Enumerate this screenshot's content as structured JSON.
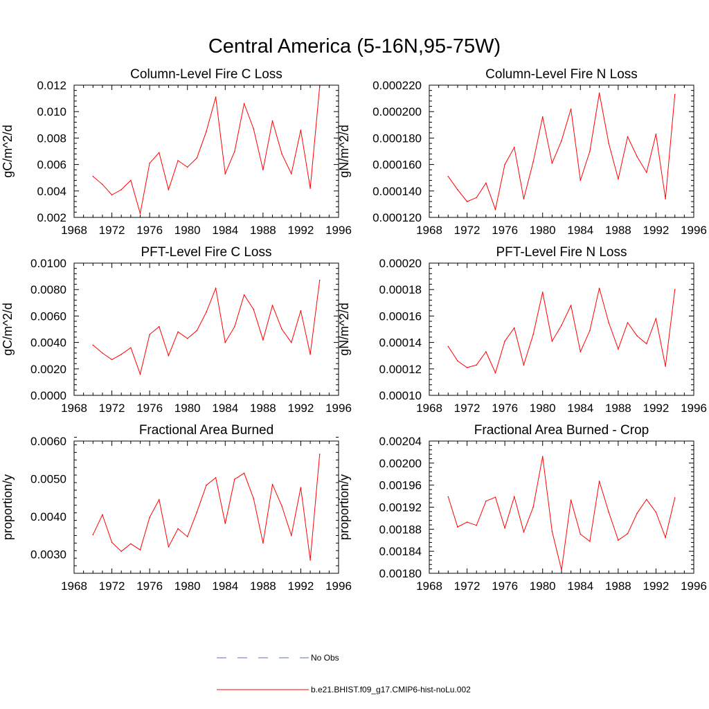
{
  "figure": {
    "title": "Central America (5-16N,95-75W)"
  },
  "legend": {
    "entries": [
      {
        "label": "No Obs",
        "color": "#5b6fb5",
        "dash": "dashed"
      },
      {
        "label": "b.e21.BHIST.f09_g17.CMIP6-hist-noLu.002",
        "color": "#ff0000",
        "dash": "solid"
      }
    ]
  },
  "chart_data": [
    {
      "type": "line",
      "title": "Column-Level Fire C Loss",
      "ylabel": "gC/m^2/d",
      "xlim": [
        1968,
        1996
      ],
      "xticks": [
        1968,
        1972,
        1976,
        1980,
        1984,
        1988,
        1992,
        1996
      ],
      "ylim": [
        0.002,
        0.012
      ],
      "yticks": [
        "0.002",
        "0.004",
        "0.006",
        "0.008",
        "0.010",
        "0.012"
      ],
      "ytick_values": [
        0.002,
        0.004,
        0.006,
        0.008,
        0.01,
        0.012
      ],
      "series": [
        {
          "color": "#ff0000",
          "x": [
            1970,
            1971,
            1972,
            1973,
            1974,
            1975,
            1976,
            1977,
            1978,
            1979,
            1980,
            1981,
            1982,
            1983,
            1984,
            1985,
            1986,
            1987,
            1988,
            1989,
            1990,
            1991,
            1992,
            1993,
            1994
          ],
          "values": [
            0.0051,
            0.0045,
            0.0037,
            0.0041,
            0.0048,
            0.0023,
            0.0061,
            0.0069,
            0.0041,
            0.0063,
            0.0058,
            0.0065,
            0.0085,
            0.0111,
            0.0053,
            0.007,
            0.0106,
            0.0087,
            0.0056,
            0.0093,
            0.0068,
            0.0053,
            0.0086,
            0.0042,
            0.0119
          ]
        }
      ]
    },
    {
      "type": "line",
      "title": "Column-Level Fire N Loss",
      "ylabel": "gN/m^2/d",
      "xlim": [
        1968,
        1996
      ],
      "xticks": [
        1968,
        1972,
        1976,
        1980,
        1984,
        1988,
        1992,
        1996
      ],
      "ylim": [
        0.00012,
        0.00022
      ],
      "yticks": [
        "0.000120",
        "0.000140",
        "0.000160",
        "0.000180",
        "0.000200",
        "0.000220"
      ],
      "ytick_values": [
        0.00012,
        0.00014,
        0.00016,
        0.00018,
        0.0002,
        0.00022
      ],
      "series": [
        {
          "color": "#ff0000",
          "x": [
            1970,
            1971,
            1972,
            1973,
            1974,
            1975,
            1976,
            1977,
            1978,
            1979,
            1980,
            1981,
            1982,
            1983,
            1984,
            1985,
            1986,
            1987,
            1988,
            1989,
            1990,
            1991,
            1992,
            1993,
            1994
          ],
          "values": [
            0.000151,
            0.000141,
            0.000132,
            0.000135,
            0.000146,
            0.000126,
            0.00016,
            0.000173,
            0.000134,
            0.000162,
            0.000196,
            0.000161,
            0.000178,
            0.000202,
            0.000148,
            0.00017,
            0.000214,
            0.000176,
            0.000149,
            0.000181,
            0.000166,
            0.000154,
            0.000183,
            0.000134,
            0.000213
          ]
        }
      ]
    },
    {
      "type": "line",
      "title": "PFT-Level Fire C Loss",
      "ylabel": "gC/m^2/d",
      "xlim": [
        1968,
        1996
      ],
      "xticks": [
        1968,
        1972,
        1976,
        1980,
        1984,
        1988,
        1992,
        1996
      ],
      "ylim": [
        0.0,
        0.01
      ],
      "yticks": [
        "0.0000",
        "0.0020",
        "0.0040",
        "0.0060",
        "0.0080",
        "0.0100"
      ],
      "ytick_values": [
        0.0,
        0.002,
        0.004,
        0.006,
        0.008,
        0.01
      ],
      "series": [
        {
          "color": "#ff0000",
          "x": [
            1970,
            1971,
            1972,
            1973,
            1974,
            1975,
            1976,
            1977,
            1978,
            1979,
            1980,
            1981,
            1982,
            1983,
            1984,
            1985,
            1986,
            1987,
            1988,
            1989,
            1990,
            1991,
            1992,
            1993,
            1994
          ],
          "values": [
            0.0038,
            0.0032,
            0.0027,
            0.0031,
            0.0036,
            0.0016,
            0.0046,
            0.0052,
            0.003,
            0.0048,
            0.0043,
            0.0049,
            0.0063,
            0.0081,
            0.004,
            0.0052,
            0.0076,
            0.0065,
            0.0042,
            0.0068,
            0.005,
            0.004,
            0.0064,
            0.0031,
            0.0087
          ]
        }
      ]
    },
    {
      "type": "line",
      "title": "PFT-Level Fire N Loss",
      "ylabel": "gN/m^2/d",
      "xlim": [
        1968,
        1996
      ],
      "xticks": [
        1968,
        1972,
        1976,
        1980,
        1984,
        1988,
        1992,
        1996
      ],
      "ylim": [
        0.0001,
        0.0002
      ],
      "yticks": [
        "0.00010",
        "0.00012",
        "0.00014",
        "0.00016",
        "0.00018",
        "0.00020"
      ],
      "ytick_values": [
        0.0001,
        0.00012,
        0.00014,
        0.00016,
        0.00018,
        0.0002
      ],
      "series": [
        {
          "color": "#ff0000",
          "x": [
            1970,
            1971,
            1972,
            1973,
            1974,
            1975,
            1976,
            1977,
            1978,
            1979,
            1980,
            1981,
            1982,
            1983,
            1984,
            1985,
            1986,
            1987,
            1988,
            1989,
            1990,
            1991,
            1992,
            1993,
            1994
          ],
          "values": [
            0.000137,
            0.000126,
            0.000121,
            0.000123,
            0.000133,
            0.000117,
            0.000141,
            0.000151,
            0.000123,
            0.000146,
            0.000178,
            0.000141,
            0.000153,
            0.000168,
            0.000133,
            0.000149,
            0.000181,
            0.000155,
            0.000135,
            0.000155,
            0.000145,
            0.000139,
            0.000158,
            0.000122,
            0.00018
          ]
        }
      ]
    },
    {
      "type": "line",
      "title": "Fractional Area Burned",
      "ylabel": "proportion/y",
      "xlim": [
        1968,
        1996
      ],
      "xticks": [
        1968,
        1972,
        1976,
        1980,
        1984,
        1988,
        1992,
        1996
      ],
      "ylim": [
        0.0025,
        0.006
      ],
      "yticks": [
        "0.0030",
        "0.0040",
        "0.0050",
        "0.0060"
      ],
      "ytick_values": [
        0.003,
        0.004,
        0.005,
        0.006
      ],
      "series": [
        {
          "color": "#ff0000",
          "x": [
            1970,
            1971,
            1972,
            1973,
            1974,
            1975,
            1976,
            1977,
            1978,
            1979,
            1980,
            1981,
            1982,
            1983,
            1984,
            1985,
            1986,
            1987,
            1988,
            1989,
            1990,
            1991,
            1992,
            1993,
            1994
          ],
          "values": [
            0.00352,
            0.00405,
            0.00332,
            0.00308,
            0.00328,
            0.00312,
            0.00398,
            0.00445,
            0.0032,
            0.00368,
            0.00347,
            0.00412,
            0.00483,
            0.00503,
            0.00382,
            0.00499,
            0.00515,
            0.00448,
            0.0033,
            0.00485,
            0.00428,
            0.0035,
            0.00477,
            0.00285,
            0.00565
          ]
        }
      ]
    },
    {
      "type": "line",
      "title": "Fractional Area Burned - Crop",
      "ylabel": "proportion/y",
      "xlim": [
        1968,
        1996
      ],
      "xticks": [
        1968,
        1972,
        1976,
        1980,
        1984,
        1988,
        1992,
        1996
      ],
      "ylim": [
        0.0018,
        0.00204
      ],
      "yticks": [
        "0.00180",
        "0.00184",
        "0.00188",
        "0.00192",
        "0.00196",
        "0.00200",
        "0.00204"
      ],
      "ytick_values": [
        0.0018,
        0.00184,
        0.00188,
        0.00192,
        0.00196,
        0.002,
        0.00204
      ],
      "series": [
        {
          "color": "#ff0000",
          "x": [
            1970,
            1971,
            1972,
            1973,
            1974,
            1975,
            1976,
            1977,
            1978,
            1979,
            1980,
            1981,
            1982,
            1983,
            1984,
            1985,
            1986,
            1987,
            1988,
            1989,
            1990,
            1991,
            1992,
            1993,
            1994
          ],
          "values": [
            0.001939,
            0.001884,
            0.001893,
            0.001887,
            0.001931,
            0.001938,
            0.001882,
            0.001939,
            0.001875,
            0.00192,
            0.002012,
            0.001876,
            0.001806,
            0.001933,
            0.001871,
            0.001858,
            0.001967,
            0.001911,
            0.00186,
            0.001872,
            0.001909,
            0.001934,
            0.001911,
            0.001865,
            0.001937
          ]
        }
      ]
    }
  ]
}
